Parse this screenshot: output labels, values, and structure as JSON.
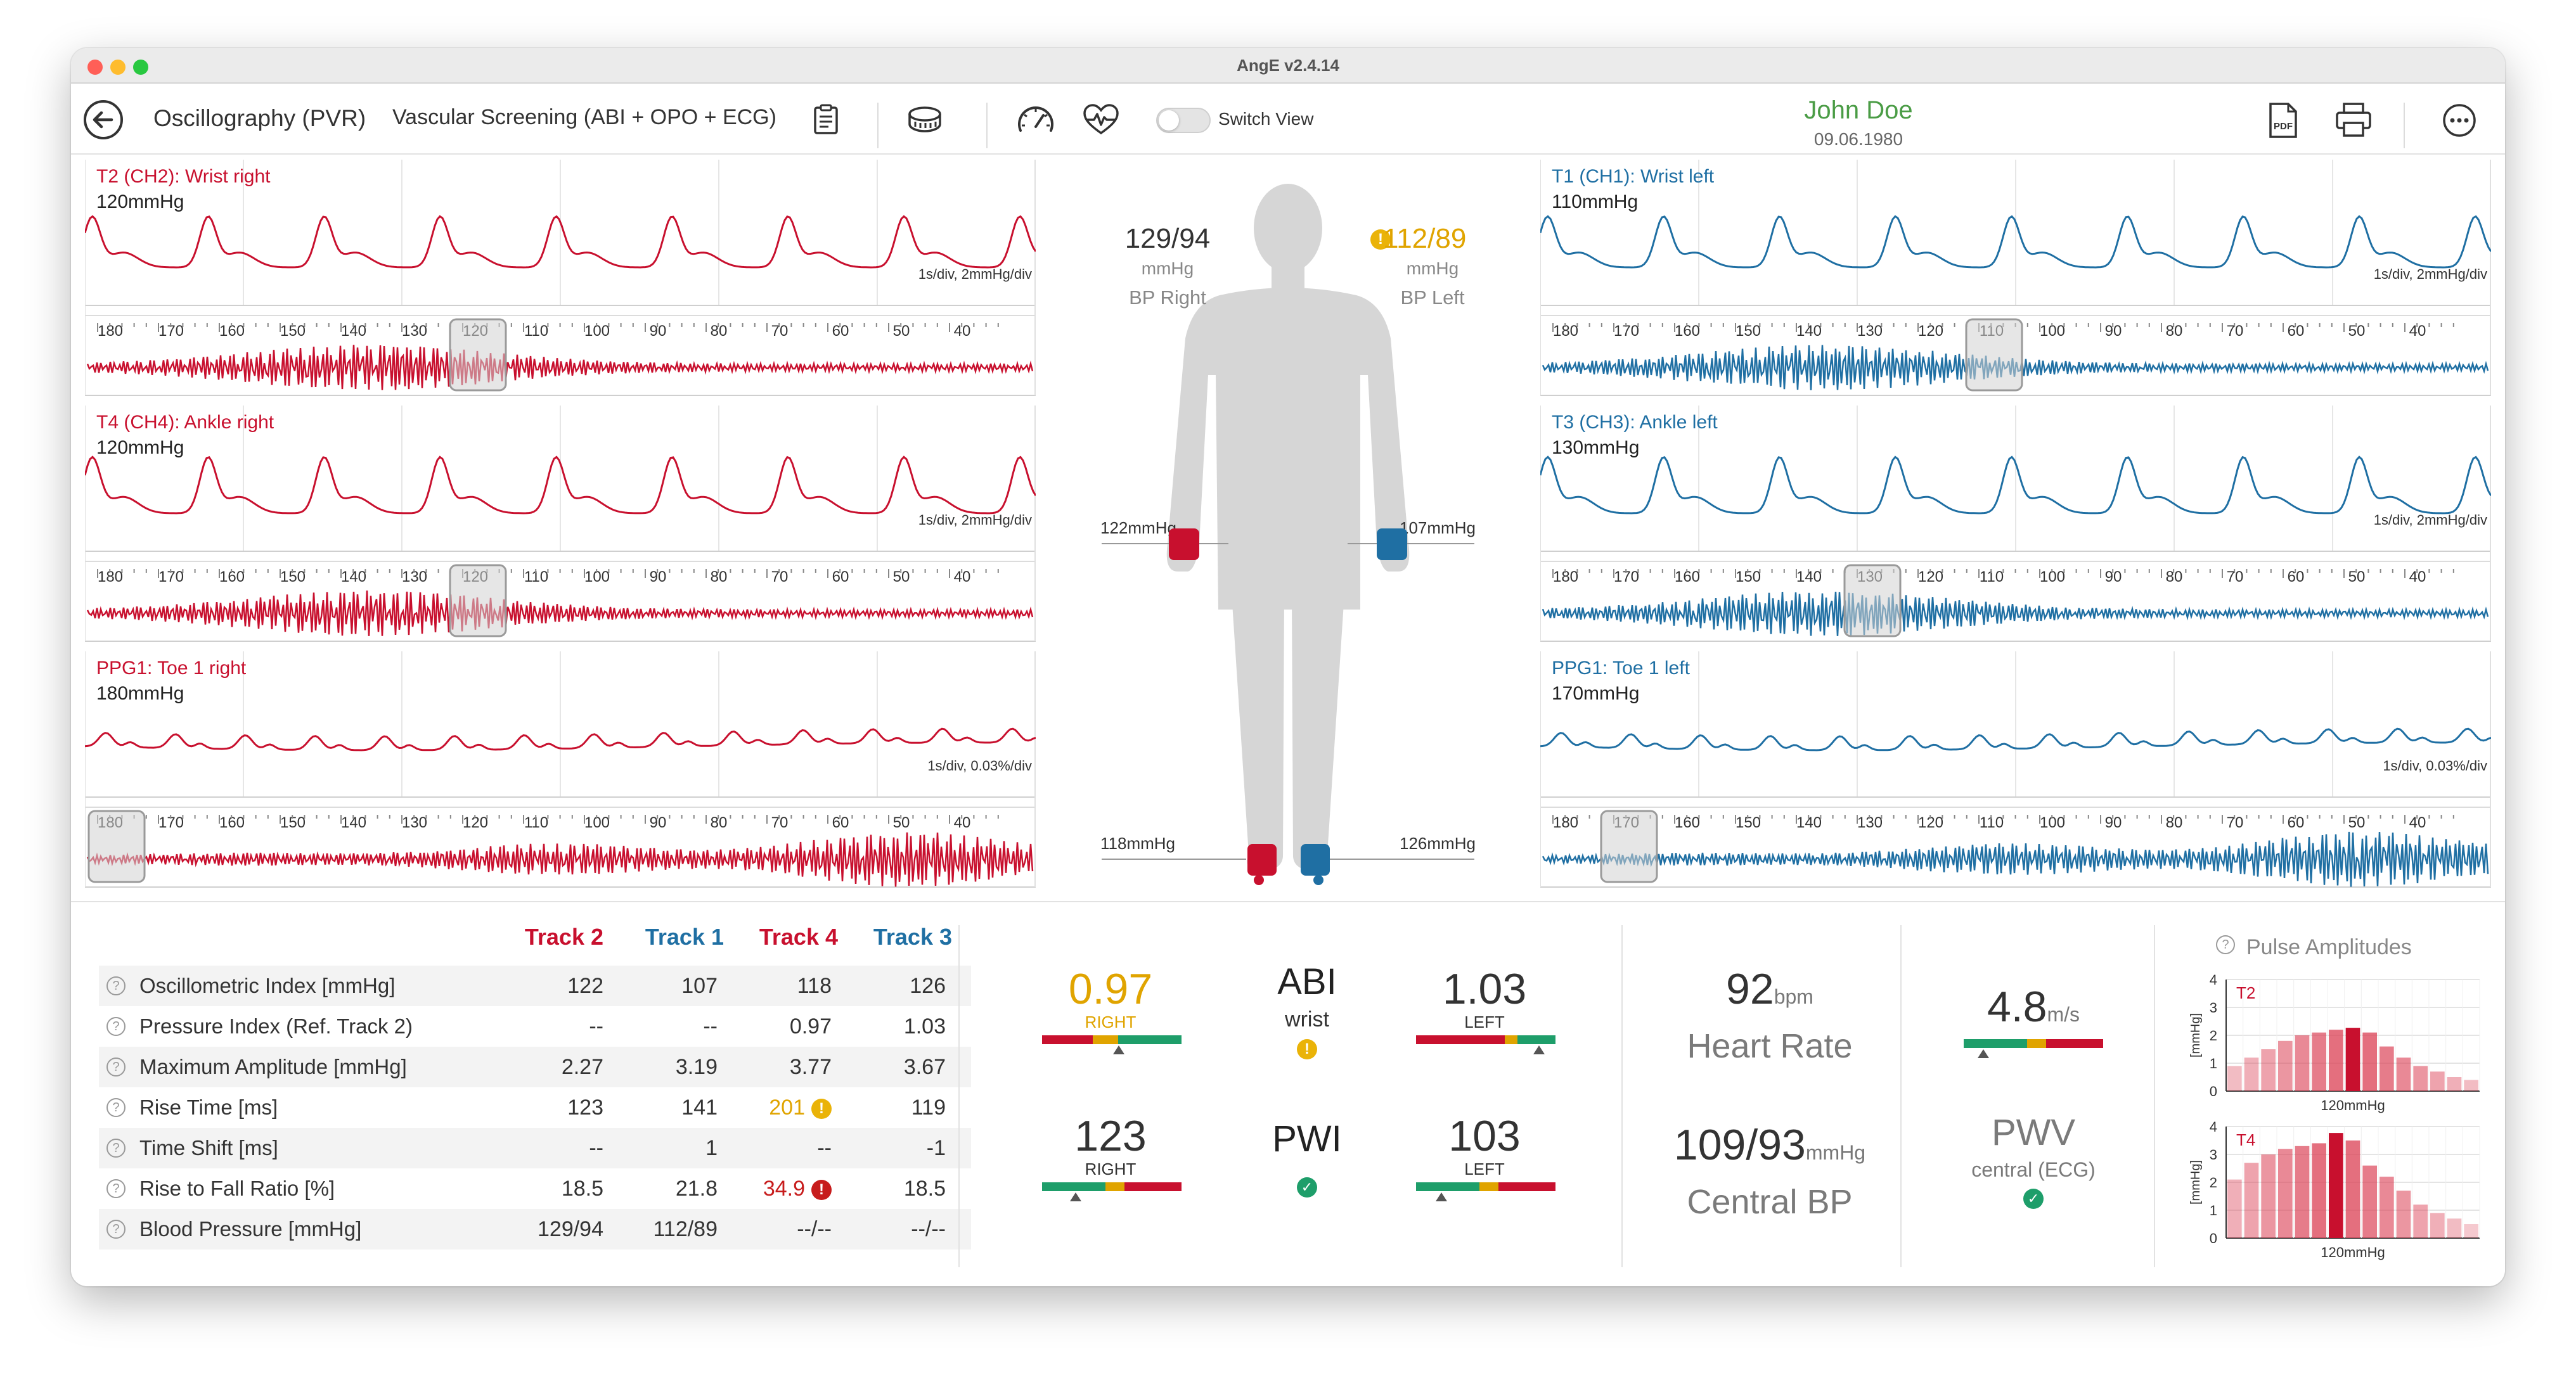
{
  "window": {
    "title": "AngE v2.4.14"
  },
  "toolbar": {
    "mode": "Oscillography (PVR)",
    "protocol": "Vascular Screening (ABI + OPO + ECG)",
    "switch_view_label": "Switch View",
    "pdf_label": "PDF"
  },
  "patient": {
    "name": "John Doe",
    "dob": "09.06.1980"
  },
  "panels": {
    "t2": {
      "title": "T2 (CH2): Wrist right",
      "pressure": "120mmHg",
      "scale": "1s/div, 2mmHg/div",
      "marker": "120"
    },
    "t4": {
      "title": "T4 (CH4): Ankle right",
      "pressure": "120mmHg",
      "scale": "1s/div, 2mmHg/div",
      "marker": "120"
    },
    "ppg_right": {
      "title": "PPG1: Toe 1 right",
      "pressure": "180mmHg",
      "scale": "1s/div, 0.03%/div",
      "marker": "180"
    },
    "t1": {
      "title": "T1 (CH1): Wrist left",
      "pressure": "110mmHg",
      "scale": "1s/div, 2mmHg/div",
      "marker": "110"
    },
    "t3": {
      "title": "T3 (CH3): Ankle left",
      "pressure": "130mmHg",
      "scale": "1s/div, 2mmHg/div",
      "marker": "130"
    },
    "ppg_left": {
      "title": "PPG1: Toe 1 left",
      "pressure": "170mmHg",
      "scale": "1s/div, 0.03%/div",
      "marker": "170"
    },
    "ticks": [
      "180",
      "170",
      "160",
      "150",
      "140",
      "130",
      "120",
      "110",
      "100",
      "90",
      "80",
      "70",
      "60",
      "50",
      "40"
    ]
  },
  "body": {
    "bp_right": {
      "value": "129/94",
      "unit": "mmHg",
      "label": "BP Right"
    },
    "bp_left": {
      "value": "112/89",
      "unit": "mmHg",
      "label": "BP Left"
    },
    "wrist_right": "122mmHg",
    "wrist_left": "107mmHg",
    "ankle_right": "118mmHg",
    "ankle_left": "126mmHg"
  },
  "table": {
    "headers": [
      "Track 2",
      "Track 1",
      "Track 4",
      "Track 3"
    ],
    "rows": [
      {
        "label": "Oscillometric Index [mmHg]",
        "values": [
          "122",
          "107",
          "118",
          "126"
        ]
      },
      {
        "label": "Pressure Index (Ref. Track 2)",
        "values": [
          "--",
          "--",
          "0.97",
          "1.03"
        ]
      },
      {
        "label": "Maximum Amplitude [mmHg]",
        "values": [
          "2.27",
          "3.19",
          "3.77",
          "3.67"
        ]
      },
      {
        "label": "Rise Time [ms]",
        "values": [
          "123",
          "141",
          "201",
          "119"
        ]
      },
      {
        "label": "Time Shift [ms]",
        "values": [
          "--",
          "1",
          "--",
          "-1"
        ]
      },
      {
        "label": "Rise to Fall Ratio [%]",
        "values": [
          "18.5",
          "21.8",
          "34.9",
          "18.5"
        ]
      },
      {
        "label": "Blood Pressure [mmHg]",
        "values": [
          "129/94",
          "112/89",
          "--/--",
          "--/--"
        ]
      }
    ]
  },
  "abi": {
    "right_value": "0.97",
    "right_label": "RIGHT",
    "left_value": "1.03",
    "left_label": "LEFT",
    "title": "ABI",
    "subtitle": "wrist",
    "right_value_fraction": 0.55,
    "left_value_fraction": 0.88
  },
  "pwi": {
    "right_value": "123",
    "right_label": "RIGHT",
    "left_value": "103",
    "left_label": "LEFT",
    "title": "PWI",
    "right_value_fraction": 0.24,
    "left_value_fraction": 0.18
  },
  "vitals": {
    "hr_value": "92",
    "hr_unit": "bpm",
    "hr_label": "Heart Rate",
    "cbp_value": "109/93",
    "cbp_unit": "mmHg",
    "cbp_label": "Central BP",
    "pwv_value": "4.8",
    "pwv_unit": "m/s",
    "pwv_label": "PWV",
    "pwv_sub": "central (ECG)",
    "pwv_value_fraction": 0.14
  },
  "pulse_amplitudes": {
    "title": "Pulse Amplitudes",
    "ylabel": "[mmHg]",
    "charts": [
      {
        "name": "T2",
        "xlabel": "120mmHg",
        "ylim": [
          0,
          4
        ],
        "yticks": [
          "4",
          "3",
          "2",
          "1",
          "0"
        ],
        "values": [
          0.9,
          1.2,
          1.5,
          1.8,
          2.0,
          2.1,
          2.2,
          2.27,
          2.1,
          1.6,
          1.2,
          0.9,
          0.7,
          0.5,
          0.4
        ],
        "highlight": 7
      },
      {
        "name": "T4",
        "xlabel": "120mmHg",
        "ylim": [
          0,
          4
        ],
        "yticks": [
          "4",
          "3",
          "2",
          "1",
          "0"
        ],
        "values": [
          2.1,
          2.7,
          3.0,
          3.2,
          3.3,
          3.4,
          3.77,
          3.5,
          2.6,
          2.2,
          1.7,
          1.2,
          0.9,
          0.7,
          0.5
        ],
        "highlight": 6
      }
    ]
  },
  "colors": {
    "right": "#c8102e",
    "left": "#1f6fa3",
    "warn": "#e0a400",
    "ok": "#1e9e6a"
  },
  "icons": [
    "back-arrow-icon",
    "clipboard-icon",
    "cuff-icon",
    "speedometer-icon",
    "heart-pulse-icon",
    "pdf-icon",
    "print-icon",
    "more-icon",
    "help-icon",
    "warning-icon",
    "check-icon",
    "error-icon",
    "body-figure-icon"
  ]
}
